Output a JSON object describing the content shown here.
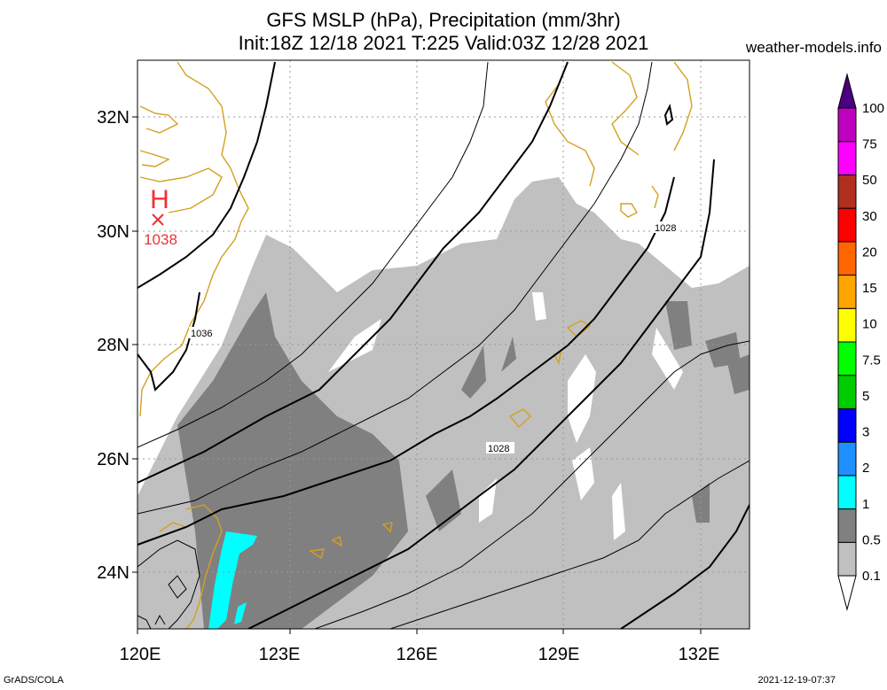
{
  "header": {
    "title_line1": "GFS MSLP (hPa), Precipitation (mm/3hr)",
    "title_line2": "Init:18Z 12/18 2021 T:225 Valid:03Z 12/28 2021",
    "site": "weather-models.info"
  },
  "axes": {
    "lon_labels": [
      "120E",
      "123E",
      "126E",
      "129E",
      "132E"
    ],
    "lat_labels": [
      "32N",
      "30N",
      "28N",
      "26N",
      "24N"
    ]
  },
  "pressure_center": {
    "type": "H",
    "value": "1038"
  },
  "isobar_labels": [
    "1036",
    "1028",
    "1028"
  ],
  "legend": {
    "colors": [
      "#c0c0c0",
      "#808080",
      "#00ffff",
      "#1e90ff",
      "#0000ff",
      "#00cc00",
      "#00ff00",
      "#ffff00",
      "#ffa500",
      "#ff6600",
      "#ff0000",
      "#b03020",
      "#ff00ff",
      "#c000c0",
      "#8b008b",
      "#4b0082"
    ],
    "labels": [
      "0.1",
      "0.5",
      "1",
      "2",
      "3",
      "5",
      "7.5",
      "10",
      "15",
      "20",
      "30",
      "50",
      "75",
      "100"
    ]
  },
  "footer": {
    "left": "GrADS/COLA",
    "right": "2021-12-19-07:37"
  }
}
